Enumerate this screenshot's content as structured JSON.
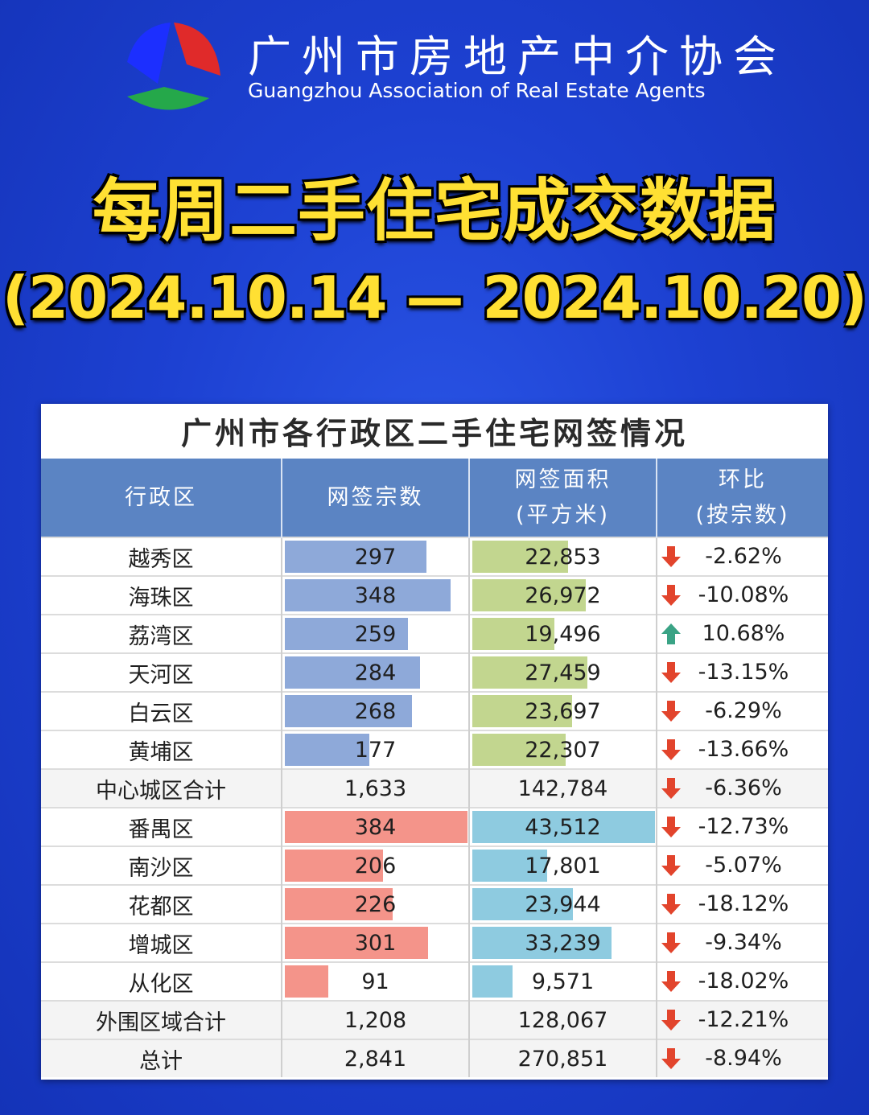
{
  "organization": {
    "name_cn": "广州市房地产中介协会",
    "name_en": "Guangzhou Association of Real Estate Agents"
  },
  "headline": {
    "title": "每周二手住宅成交数据",
    "date_range": "(2024.10.14 — 2024.10.20)"
  },
  "colors": {
    "count_bar_core": "#8ea9d9",
    "area_bar_core": "#c2d68f",
    "count_bar_outer": "#f4948a",
    "area_bar_outer": "#8ecbe0",
    "header_bg": "#5b84c3",
    "arrow_down": "#e2442c",
    "arrow_up": "#3aa385"
  },
  "chart_data": {
    "type": "table",
    "title": "广州市各行政区二手住宅网签情况",
    "columns": [
      {
        "label": "行政区"
      },
      {
        "label": "网签宗数"
      },
      {
        "label": "网签面积",
        "sub": "(平方米)"
      },
      {
        "label": "环比",
        "sub": "(按宗数)"
      }
    ],
    "rows": [
      {
        "district": "越秀区",
        "count": "297",
        "area": "22,853",
        "change": "-2.62%",
        "count_value": 297,
        "area_value": 22853,
        "direction": "down",
        "group": "core"
      },
      {
        "district": "海珠区",
        "count": "348",
        "area": "26,972",
        "change": "-10.08%",
        "count_value": 348,
        "area_value": 26972,
        "direction": "down",
        "group": "core"
      },
      {
        "district": "荔湾区",
        "count": "259",
        "area": "19,496",
        "change": "10.68%",
        "count_value": 259,
        "area_value": 19496,
        "direction": "up",
        "group": "core"
      },
      {
        "district": "天河区",
        "count": "284",
        "area": "27,459",
        "change": "-13.15%",
        "count_value": 284,
        "area_value": 27459,
        "direction": "down",
        "group": "core"
      },
      {
        "district": "白云区",
        "count": "268",
        "area": "23,697",
        "change": "-6.29%",
        "count_value": 268,
        "area_value": 23697,
        "direction": "down",
        "group": "core"
      },
      {
        "district": "黄埔区",
        "count": "177",
        "area": "22,307",
        "change": "-13.66%",
        "count_value": 177,
        "area_value": 22307,
        "direction": "down",
        "group": "core"
      },
      {
        "district": "中心城区合计",
        "count": "1,633",
        "area": "142,784",
        "change": "-6.36%",
        "direction": "down",
        "group": "subtotal"
      },
      {
        "district": "番禺区",
        "count": "384",
        "area": "43,512",
        "change": "-12.73%",
        "count_value": 384,
        "area_value": 43512,
        "direction": "down",
        "group": "outer"
      },
      {
        "district": "南沙区",
        "count": "206",
        "area": "17,801",
        "change": "-5.07%",
        "count_value": 206,
        "area_value": 17801,
        "direction": "down",
        "group": "outer"
      },
      {
        "district": "花都区",
        "count": "226",
        "area": "23,944",
        "change": "-18.12%",
        "count_value": 226,
        "area_value": 23944,
        "direction": "down",
        "group": "outer"
      },
      {
        "district": "增城区",
        "count": "301",
        "area": "33,239",
        "change": "-9.34%",
        "count_value": 301,
        "area_value": 33239,
        "direction": "down",
        "group": "outer"
      },
      {
        "district": "从化区",
        "count": "91",
        "area": "9,571",
        "change": "-18.02%",
        "count_value": 91,
        "area_value": 9571,
        "direction": "down",
        "group": "outer"
      },
      {
        "district": "外围区域合计",
        "count": "1,208",
        "area": "128,067",
        "change": "-12.21%",
        "direction": "down",
        "group": "subtotal"
      },
      {
        "district": "总计",
        "count": "2,841",
        "area": "270,851",
        "change": "-8.94%",
        "direction": "down",
        "group": "subtotal"
      }
    ]
  }
}
